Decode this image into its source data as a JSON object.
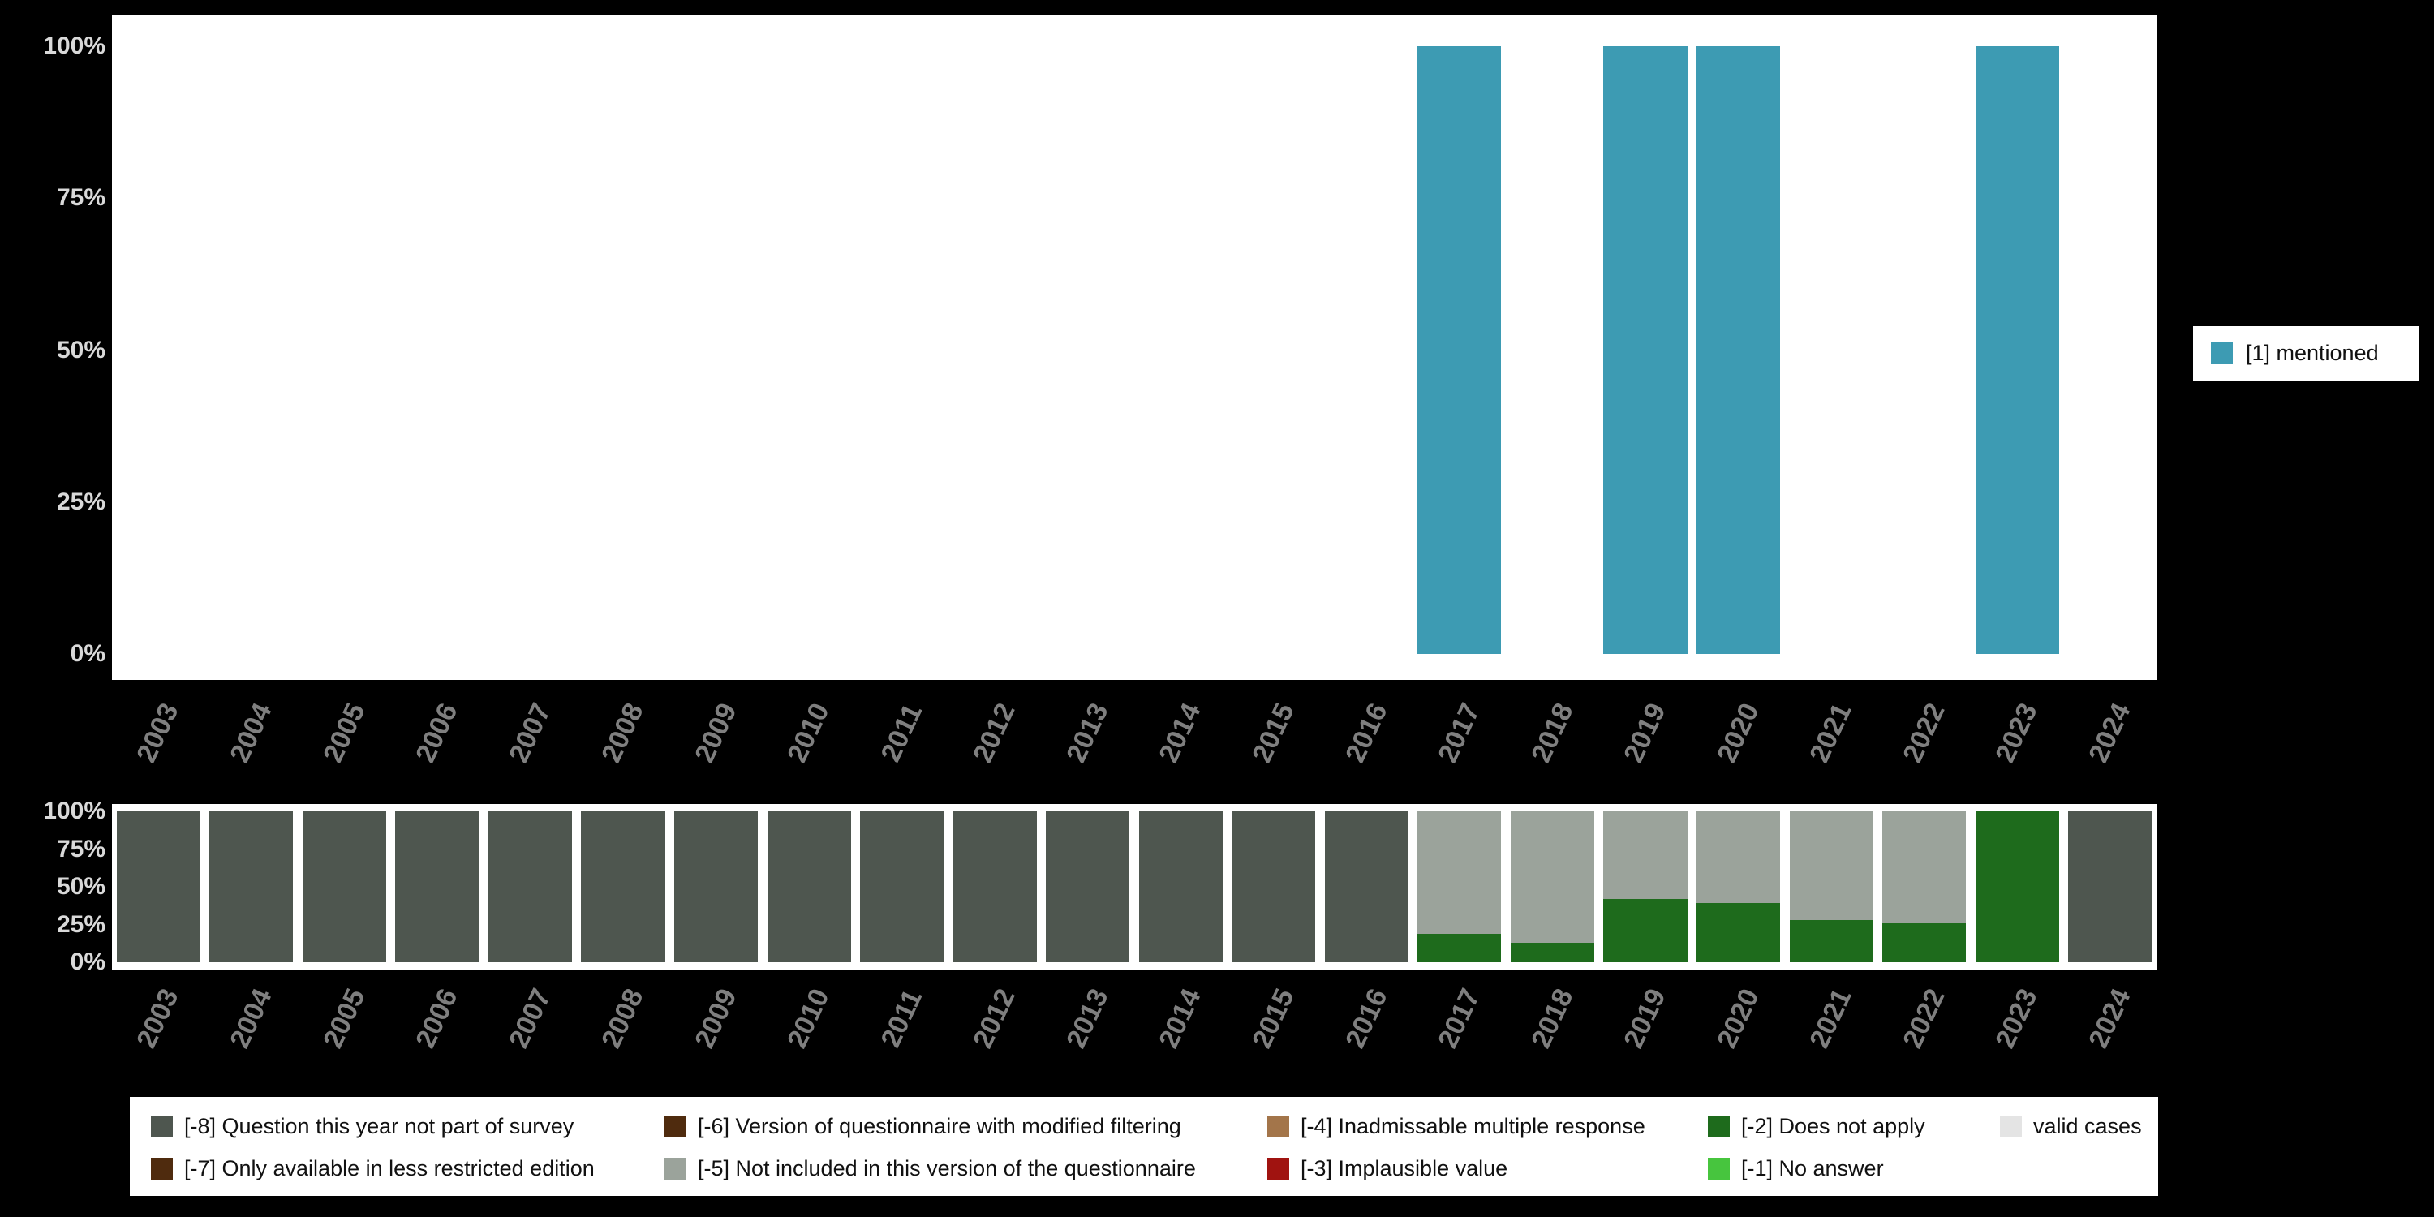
{
  "colors": {
    "background": "#000000",
    "plot_background": "#ffffff",
    "mentioned_teal": "#3d9bb3",
    "not_part_of_survey_gray": "#4e564f",
    "not_included_gray": "#9ba39b",
    "does_not_apply_green": "#1e6b1c",
    "no_answer_green": "#47c53e",
    "implausible_red": "#a01310",
    "inadmissable_brown": "#a3754a",
    "restricted_brown": "#4f2b0e",
    "valid_cases_gray": "#e4e4e4",
    "axis_year_label": "#7f7f7f",
    "axis_percent_label": "#d9d9d9"
  },
  "years": [
    "2003",
    "2004",
    "2005",
    "2006",
    "2007",
    "2008",
    "2009",
    "2010",
    "2011",
    "2012",
    "2013",
    "2014",
    "2015",
    "2016",
    "2017",
    "2018",
    "2019",
    "2020",
    "2021",
    "2022",
    "2023",
    "2024"
  ],
  "top_legend": {
    "label": "[1] mentioned",
    "color": "#3d9bb3"
  },
  "chart_data": [
    {
      "type": "bar",
      "title": "",
      "xlabel": "",
      "ylabel": "",
      "ylim": [
        0,
        100
      ],
      "yticks": [
        "0%",
        "25%",
        "50%",
        "75%",
        "100%"
      ],
      "legend_position": "right",
      "categories": [
        "2003",
        "2004",
        "2005",
        "2006",
        "2007",
        "2008",
        "2009",
        "2010",
        "2011",
        "2012",
        "2013",
        "2014",
        "2015",
        "2016",
        "2017",
        "2018",
        "2019",
        "2020",
        "2021",
        "2022",
        "2023",
        "2024"
      ],
      "series": [
        {
          "name": "[1] mentioned",
          "color": "#3d9bb3",
          "values": [
            0,
            0,
            0,
            0,
            0,
            0,
            0,
            0,
            0,
            0,
            0,
            0,
            0,
            0,
            100,
            0,
            100,
            100,
            0,
            0,
            100,
            0
          ]
        }
      ]
    },
    {
      "type": "stacked-bar",
      "title": "",
      "xlabel": "",
      "ylabel": "",
      "ylim": [
        0,
        100
      ],
      "yticks": [
        "0%",
        "25%",
        "50%",
        "75%",
        "100%"
      ],
      "legend_position": "bottom",
      "categories": [
        "2003",
        "2004",
        "2005",
        "2006",
        "2007",
        "2008",
        "2009",
        "2010",
        "2011",
        "2012",
        "2013",
        "2014",
        "2015",
        "2016",
        "2017",
        "2018",
        "2019",
        "2020",
        "2021",
        "2022",
        "2023",
        "2024"
      ],
      "series": [
        {
          "name": "[-8] Question this year not part of survey",
          "color": "#4e564f",
          "values": [
            100,
            100,
            100,
            100,
            100,
            100,
            100,
            100,
            100,
            100,
            100,
            100,
            100,
            100,
            0,
            0,
            0,
            0,
            0,
            0,
            0,
            100
          ]
        },
        {
          "name": "[-2] Does not apply",
          "color": "#1e6b1c",
          "values": [
            0,
            0,
            0,
            0,
            0,
            0,
            0,
            0,
            0,
            0,
            0,
            0,
            0,
            0,
            19,
            13,
            42,
            39,
            28,
            26,
            100,
            0
          ]
        },
        {
          "name": "[-5] Not included in this version of the questionnaire",
          "color": "#9ba39b",
          "values": [
            0,
            0,
            0,
            0,
            0,
            0,
            0,
            0,
            0,
            0,
            0,
            0,
            0,
            0,
            81,
            87,
            58,
            61,
            72,
            74,
            0,
            0
          ]
        }
      ]
    }
  ],
  "legend_bottom": {
    "rows": [
      [
        {
          "label": "[-8] Question this year not part of survey",
          "color": "#4e564f"
        },
        {
          "label": "[-6] Version of questionnaire with modified filtering",
          "color": "#4f2b0e"
        },
        {
          "label": "[-4] Inadmissable multiple response",
          "color": "#a3754a"
        },
        {
          "label": "[-2] Does not apply",
          "color": "#1e6b1c"
        },
        {
          "label": "valid cases",
          "color": "#e4e4e4"
        }
      ],
      [
        {
          "label": "[-7] Only available in less restricted edition",
          "color": "#4f2b0e"
        },
        {
          "label": "[-5] Not included in this version of the questionnaire",
          "color": "#9ba39b"
        },
        {
          "label": "[-3] Implausible value",
          "color": "#a01310"
        },
        {
          "label": "[-1] No answer",
          "color": "#47c53e"
        }
      ]
    ]
  }
}
